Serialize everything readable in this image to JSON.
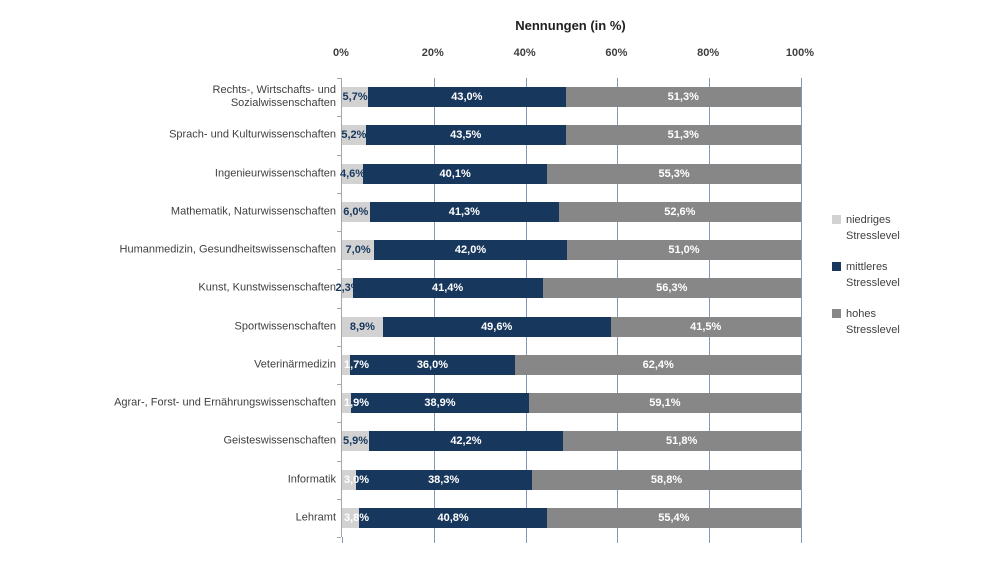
{
  "title": "Nennungen (in %)",
  "chart_data": {
    "type": "bar",
    "orientation": "horizontal-stacked",
    "title": "Nennungen (in %)",
    "x_axis": {
      "position": "top",
      "min": 0,
      "max": 100,
      "interval": 20,
      "ticks": [
        "0%",
        "20%",
        "40%",
        "60%",
        "80%",
        "100%"
      ]
    },
    "grid": true,
    "legend_position": "right",
    "categories": [
      "Rechts-, Wirtschafts- und Sozialwissenschaften",
      "Sprach- und Kulturwissenschaften",
      "Ingenieurwissenschaften",
      "Mathematik, Naturwissenschaften",
      "Humanmedizin, Gesundheitswissenschaften",
      "Kunst, Kunstwissenschaften",
      "Sportwissenschaften",
      "Veterinärmedizin",
      "Agrar-, Forst- und Ernährungswissenschaften",
      "Geisteswissenschaften",
      "Informatik",
      "Lehramt"
    ],
    "category_lines": [
      [
        "Rechts-, Wirtschafts- und",
        "Sozialwissenschaften"
      ],
      [
        "Sprach- und Kulturwissenschaften"
      ],
      [
        "Ingenieurwissenschaften"
      ],
      [
        "Mathematik, Naturwissenschaften"
      ],
      [
        "Humanmedizin, Gesundheitswissenschaften"
      ],
      [
        "Kunst, Kunstwissenschaften"
      ],
      [
        "Sportwissenschaften"
      ],
      [
        "Veterinärmedizin"
      ],
      [
        "Agrar-, Forst- und Ernährungswissenschaften"
      ],
      [
        "Geisteswissenschaften"
      ],
      [
        "Informatik"
      ],
      [
        "Lehramt"
      ]
    ],
    "series": [
      {
        "name": "niedriges Stresslevel",
        "color": "#d2d2d2",
        "values": [
          5.7,
          5.2,
          4.6,
          6.0,
          7.0,
          2.3,
          8.9,
          1.7,
          1.9,
          5.9,
          3.0,
          3.8
        ],
        "labels": [
          "5,7%",
          "5,2%",
          "4,6%",
          "6,0%",
          "7,0%",
          "2,3%",
          "8,9%",
          "1,7%",
          "1,9%",
          "5,9%",
          "3,0%",
          "3,8%"
        ],
        "label_styles": [
          "dark-center",
          "dark-center",
          "dark-center",
          "dark-center",
          "dark-center",
          "dark-end",
          "dark-center",
          "white-start",
          "white-start",
          "dark-center",
          "white-start",
          "white-start"
        ]
      },
      {
        "name": "mittleres Stresslevel",
        "color": "#17375d",
        "values": [
          43.0,
          43.5,
          40.1,
          41.3,
          42.0,
          41.4,
          49.6,
          36.0,
          38.9,
          42.2,
          38.3,
          40.8
        ],
        "labels": [
          "43,0%",
          "43,5%",
          "40,1%",
          "41,3%",
          "42,0%",
          "41,4%",
          "49,6%",
          "36,0%",
          "38,9%",
          "42,2%",
          "38,3%",
          "40,8%"
        ]
      },
      {
        "name": "hohes Stresslevel",
        "color": "#878787",
        "values": [
          51.3,
          51.3,
          55.3,
          52.6,
          51.0,
          56.3,
          41.5,
          62.4,
          59.1,
          51.8,
          58.8,
          55.4
        ],
        "labels": [
          "51,3%",
          "51,3%",
          "55,3%",
          "52,6%",
          "51,0%",
          "56,3%",
          "41,5%",
          "62,4%",
          "59,1%",
          "51,8%",
          "58,8%",
          "55,4%"
        ]
      }
    ],
    "legend_entries": [
      {
        "label": "niedriges Stresslevel",
        "label_lines": [
          "niedriges",
          "Stresslevel"
        ],
        "color": "#d2d2d2"
      },
      {
        "label": "mittleres Stresslevel",
        "label_lines": [
          "mittleres",
          "Stresslevel"
        ],
        "color": "#17375d"
      },
      {
        "label": "hohes Stresslevel",
        "label_lines": [
          "hohes",
          "Stresslevel"
        ],
        "color": "#878787"
      }
    ],
    "colors": {
      "gridline": "#8498b8",
      "axis": "#a6a6a6",
      "dark_label": "#17375d",
      "white_label": "#ffffff",
      "text": "#3f3f3f"
    }
  }
}
